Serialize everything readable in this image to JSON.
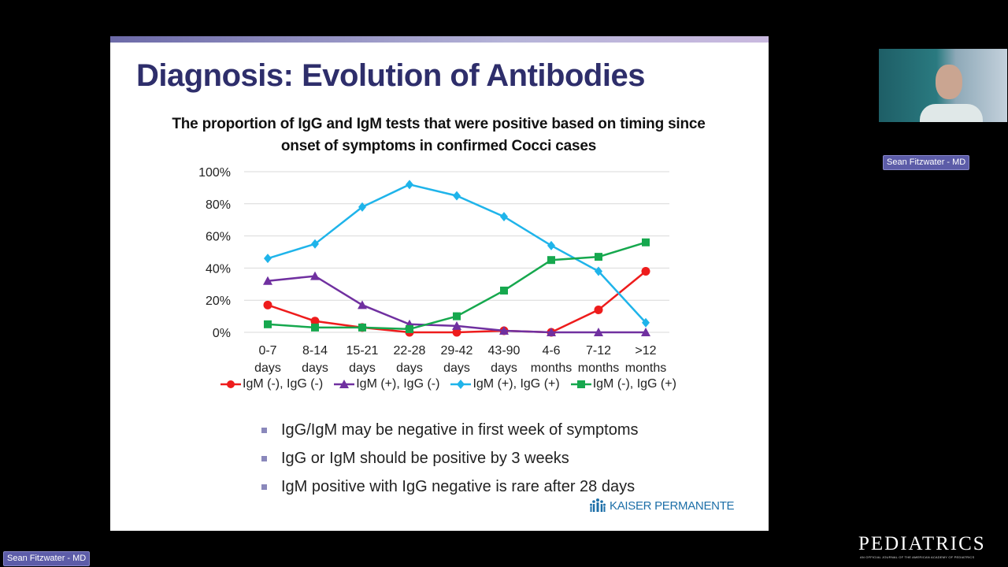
{
  "slide": {
    "title": "Diagnosis: Evolution of Antibodies",
    "bullets": [
      "IgG/IgM may be negative in first week of symptoms",
      "IgG or IgM should be positive by 3 weeks",
      "IgM positive with IgG negative is rare after 28 days"
    ],
    "logo": "KAISER PERMANENTE"
  },
  "chart_data": {
    "type": "line",
    "title": "The proportion of IgG and IgM tests that were positive based on timing since onset of symptoms in confirmed Cocci cases",
    "categories": [
      [
        "0-7",
        "days"
      ],
      [
        "8-14",
        "days"
      ],
      [
        "15-21",
        "days"
      ],
      [
        "22-28",
        "days"
      ],
      [
        "29-42",
        "days"
      ],
      [
        "43-90",
        "days"
      ],
      [
        "4-6",
        "months"
      ],
      [
        "7-12",
        "months"
      ],
      [
        ">12",
        "months"
      ]
    ],
    "yticks": [
      "0%",
      "20%",
      "40%",
      "60%",
      "80%",
      "100%"
    ],
    "ylim": [
      0,
      100
    ],
    "series": [
      {
        "name": "IgM (-), IgG (-)",
        "color": "#ee1c1c",
        "marker": "circle",
        "values": [
          17,
          7,
          3,
          0,
          0,
          1,
          0,
          14,
          38
        ]
      },
      {
        "name": "IgM (+), IgG (-)",
        "color": "#7030a0",
        "marker": "triangle",
        "values": [
          32,
          35,
          17,
          5,
          4,
          1,
          0,
          0,
          0
        ]
      },
      {
        "name": "IgM (+), IgG (+)",
        "color": "#1fb4ea",
        "marker": "diamond",
        "values": [
          46,
          55,
          78,
          92,
          85,
          72,
          54,
          38,
          6
        ]
      },
      {
        "name": "IgM (-), IgG (+)",
        "color": "#16a84e",
        "marker": "square",
        "values": [
          5,
          3,
          3,
          2,
          10,
          26,
          45,
          47,
          56
        ]
      }
    ]
  },
  "participants": {
    "speaker": "Sean Fitzwater - MD",
    "self": "Sean Fitzwater - MD"
  },
  "branding": {
    "name": "PEDIATRICS",
    "tagline": "AN OFFICIAL JOURNAL OF THE AMERICAN ACADEMY OF PEDIATRICS"
  }
}
